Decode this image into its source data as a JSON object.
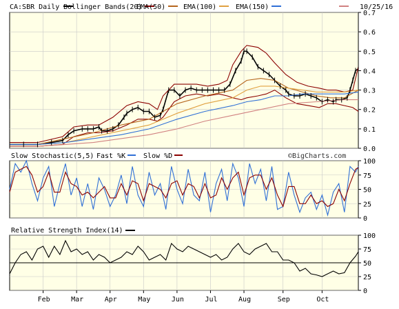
{
  "chart_data": [
    {
      "type": "line",
      "panel": "price",
      "symbol_label": "CA:SBR Daily",
      "date": "10/25/16",
      "legend": [
        {
          "label": "Bollinger Bands(20)",
          "color": "#8b0000"
        },
        {
          "label": "EMA(50)",
          "color": "#b5651d"
        },
        {
          "label": "EMA(100)",
          "color": "#e0a040"
        },
        {
          "label": "EMA(150)",
          "color": "#2f6fd6"
        },
        {
          "label": "",
          "color": "#d08080"
        }
      ],
      "ylim": [
        0.0,
        0.7
      ],
      "y_ticks": [
        "0.0",
        "0.1",
        "0.2",
        "0.3",
        "0.4",
        "0.5",
        "0.6",
        "0.7"
      ],
      "x_labels": [
        "Feb",
        "Mar",
        "Apr",
        "May",
        "Jun",
        "Jul",
        "Aug",
        "Sep",
        "Oct"
      ],
      "grid": true,
      "series": [
        {
          "role": "price",
          "color": "#000000",
          "x": [
            0,
            10,
            20,
            30,
            38,
            42,
            46,
            52,
            56,
            60,
            64,
            66,
            70,
            74,
            78,
            82,
            84,
            88,
            92,
            96,
            100,
            104,
            108,
            110,
            114,
            118,
            122,
            126,
            130,
            134,
            138,
            142,
            146,
            150,
            154,
            158,
            162,
            166,
            168,
            170,
            174,
            178,
            182,
            186,
            190,
            194,
            198,
            200,
            204,
            208,
            212,
            216,
            220,
            224,
            228,
            232,
            234,
            238,
            242,
            244,
            246,
            248,
            250
          ],
          "y": [
            0.02,
            0.02,
            0.02,
            0.03,
            0.04,
            0.07,
            0.09,
            0.1,
            0.1,
            0.1,
            0.11,
            0.09,
            0.09,
            0.1,
            0.12,
            0.16,
            0.18,
            0.2,
            0.21,
            0.19,
            0.19,
            0.16,
            0.17,
            0.2,
            0.3,
            0.3,
            0.27,
            0.3,
            0.31,
            0.3,
            0.3,
            0.3,
            0.3,
            0.3,
            0.3,
            0.33,
            0.4,
            0.45,
            0.5,
            0.5,
            0.47,
            0.42,
            0.4,
            0.38,
            0.35,
            0.32,
            0.3,
            0.28,
            0.27,
            0.27,
            0.28,
            0.27,
            0.26,
            0.24,
            0.25,
            0.24,
            0.25,
            0.25,
            0.26,
            0.3,
            0.35,
            0.4,
            0.41
          ]
        },
        {
          "role": "bollinger-upper",
          "color": "#8b0000",
          "x": [
            0,
            20,
            38,
            46,
            56,
            64,
            74,
            84,
            92,
            100,
            106,
            110,
            118,
            126,
            134,
            142,
            150,
            156,
            160,
            166,
            170,
            178,
            184,
            190,
            198,
            206,
            214,
            222,
            228,
            234,
            240,
            246,
            250
          ],
          "y": [
            0.03,
            0.03,
            0.06,
            0.11,
            0.12,
            0.12,
            0.16,
            0.22,
            0.24,
            0.23,
            0.2,
            0.27,
            0.33,
            0.33,
            0.33,
            0.32,
            0.33,
            0.35,
            0.43,
            0.5,
            0.53,
            0.52,
            0.49,
            0.44,
            0.38,
            0.34,
            0.32,
            0.31,
            0.3,
            0.3,
            0.29,
            0.3,
            0.42
          ]
        },
        {
          "role": "bollinger-lower",
          "color": "#8b0000",
          "x": [
            0,
            20,
            38,
            46,
            56,
            64,
            74,
            84,
            92,
            100,
            106,
            110,
            118,
            126,
            134,
            142,
            150,
            156,
            160,
            166,
            170,
            178,
            184,
            190,
            198,
            206,
            214,
            222,
            228,
            234,
            240,
            246,
            250
          ],
          "y": [
            0.01,
            0.01,
            0.02,
            0.06,
            0.08,
            0.08,
            0.09,
            0.12,
            0.15,
            0.15,
            0.14,
            0.16,
            0.24,
            0.27,
            0.28,
            0.27,
            0.28,
            0.27,
            0.26,
            0.25,
            0.26,
            0.27,
            0.28,
            0.3,
            0.26,
            0.23,
            0.22,
            0.21,
            0.23,
            0.23,
            0.22,
            0.21,
            0.19
          ]
        },
        {
          "role": "ema-50",
          "color": "#b5651d",
          "x": [
            0,
            20,
            40,
            60,
            80,
            100,
            120,
            140,
            160,
            170,
            180,
            190,
            200,
            210,
            220,
            230,
            240,
            250
          ],
          "y": [
            0.02,
            0.02,
            0.05,
            0.08,
            0.12,
            0.15,
            0.23,
            0.27,
            0.3,
            0.35,
            0.36,
            0.35,
            0.31,
            0.29,
            0.27,
            0.26,
            0.26,
            0.3
          ]
        },
        {
          "role": "ema-100",
          "color": "#e0a040",
          "x": [
            0,
            20,
            40,
            60,
            80,
            100,
            120,
            140,
            160,
            170,
            180,
            190,
            200,
            210,
            220,
            230,
            240,
            250
          ],
          "y": [
            0.02,
            0.02,
            0.03,
            0.06,
            0.09,
            0.12,
            0.18,
            0.23,
            0.26,
            0.3,
            0.32,
            0.32,
            0.31,
            0.3,
            0.29,
            0.29,
            0.29,
            0.3
          ]
        },
        {
          "role": "ema-150",
          "color": "#2f6fd6",
          "x": [
            0,
            20,
            40,
            60,
            80,
            100,
            120,
            140,
            160,
            170,
            180,
            190,
            200,
            210,
            220,
            230,
            240,
            250
          ],
          "y": [
            0.02,
            0.02,
            0.03,
            0.05,
            0.07,
            0.1,
            0.15,
            0.19,
            0.22,
            0.24,
            0.25,
            0.27,
            0.27,
            0.28,
            0.28,
            0.28,
            0.28,
            0.29
          ]
        },
        {
          "role": "ema-extra",
          "color": "#d08080",
          "x": [
            0,
            20,
            40,
            60,
            80,
            100,
            120,
            140,
            160,
            180,
            200,
            220,
            240,
            250
          ],
          "y": [
            0.01,
            0.01,
            0.02,
            0.03,
            0.05,
            0.07,
            0.1,
            0.14,
            0.17,
            0.2,
            0.23,
            0.24,
            0.25,
            0.25
          ]
        }
      ]
    },
    {
      "type": "line",
      "panel": "stochastic",
      "title": "Slow Stochastic(5,5)",
      "legend": [
        {
          "label": "Fast %K",
          "color": "#2f6fd6"
        },
        {
          "label": "Slow %D",
          "color": "#8b0000"
        }
      ],
      "watermark": "©BigCharts.com",
      "ylim": [
        0,
        100
      ],
      "y_ticks": [
        "0",
        "25",
        "50",
        "75",
        "100"
      ],
      "grid": true,
      "series": [
        {
          "name": "Fast %K",
          "color": "#2f6fd6",
          "x": [
            0,
            4,
            8,
            12,
            16,
            20,
            24,
            28,
            32,
            36,
            40,
            44,
            48,
            52,
            56,
            60,
            64,
            68,
            72,
            76,
            80,
            84,
            88,
            92,
            96,
            100,
            104,
            108,
            112,
            116,
            120,
            124,
            128,
            132,
            136,
            140,
            144,
            148,
            152,
            156,
            160,
            164,
            168,
            172,
            176,
            180,
            184,
            188,
            192,
            196,
            200,
            204,
            208,
            212,
            216,
            220,
            224,
            228,
            232,
            236,
            240,
            244,
            248,
            250
          ],
          "y": [
            50,
            95,
            80,
            100,
            60,
            30,
            70,
            90,
            20,
            60,
            95,
            40,
            70,
            20,
            60,
            15,
            70,
            50,
            20,
            40,
            75,
            25,
            90,
            40,
            20,
            80,
            40,
            60,
            15,
            90,
            50,
            25,
            85,
            40,
            30,
            80,
            10,
            60,
            85,
            30,
            95,
            70,
            20,
            95,
            60,
            85,
            30,
            90,
            15,
            20,
            80,
            40,
            10,
            35,
            45,
            15,
            40,
            5,
            45,
            60,
            10,
            90,
            80,
            90
          ]
        },
        {
          "name": "Slow %D",
          "color": "#8b0000",
          "x": [
            0,
            4,
            8,
            12,
            16,
            20,
            24,
            28,
            32,
            36,
            40,
            44,
            48,
            52,
            56,
            60,
            64,
            68,
            72,
            76,
            80,
            84,
            88,
            92,
            96,
            100,
            104,
            108,
            112,
            116,
            120,
            124,
            128,
            132,
            136,
            140,
            144,
            148,
            152,
            156,
            160,
            164,
            168,
            172,
            176,
            180,
            184,
            188,
            192,
            196,
            200,
            204,
            208,
            212,
            216,
            220,
            224,
            228,
            232,
            236,
            240,
            244,
            248,
            250
          ],
          "y": [
            45,
            80,
            85,
            90,
            75,
            45,
            55,
            80,
            45,
            45,
            80,
            60,
            55,
            40,
            45,
            35,
            45,
            55,
            35,
            35,
            60,
            40,
            65,
            60,
            30,
            60,
            55,
            50,
            35,
            60,
            65,
            40,
            60,
            55,
            35,
            60,
            35,
            40,
            70,
            50,
            70,
            80,
            40,
            70,
            75,
            75,
            50,
            70,
            40,
            20,
            55,
            55,
            25,
            25,
            40,
            25,
            30,
            20,
            25,
            50,
            30,
            60,
            85,
            88
          ]
        }
      ]
    },
    {
      "type": "line",
      "panel": "rsi",
      "title": "Relative Strength Index(14)",
      "legend_color": "#000000",
      "ylim": [
        0,
        100
      ],
      "y_ticks": [
        "0",
        "25",
        "50",
        "75",
        "100"
      ],
      "reference_line": 50,
      "grid": true,
      "series": [
        {
          "name": "RSI",
          "color": "#000000",
          "x": [
            0,
            4,
            8,
            12,
            16,
            20,
            24,
            28,
            32,
            36,
            40,
            44,
            48,
            52,
            56,
            60,
            64,
            68,
            72,
            76,
            80,
            84,
            88,
            92,
            96,
            100,
            104,
            108,
            112,
            116,
            120,
            124,
            128,
            132,
            136,
            140,
            144,
            148,
            152,
            156,
            160,
            164,
            168,
            172,
            176,
            180,
            184,
            188,
            192,
            196,
            200,
            204,
            208,
            212,
            216,
            220,
            224,
            228,
            232,
            236,
            240,
            244,
            248,
            250
          ],
          "y": [
            30,
            50,
            65,
            70,
            55,
            75,
            80,
            60,
            80,
            65,
            90,
            70,
            75,
            65,
            70,
            55,
            65,
            60,
            50,
            55,
            60,
            70,
            65,
            80,
            70,
            55,
            60,
            65,
            55,
            85,
            75,
            70,
            80,
            75,
            70,
            65,
            60,
            65,
            55,
            60,
            75,
            85,
            70,
            65,
            75,
            80,
            85,
            70,
            70,
            55,
            55,
            50,
            35,
            40,
            30,
            28,
            25,
            30,
            35,
            30,
            32,
            50,
            62,
            70
          ]
        }
      ]
    }
  ],
  "x_axis": {
    "labels": [
      "Feb",
      "Mar",
      "Apr",
      "May",
      "Jun",
      "Jul",
      "Aug",
      "Sep",
      "Oct"
    ]
  }
}
